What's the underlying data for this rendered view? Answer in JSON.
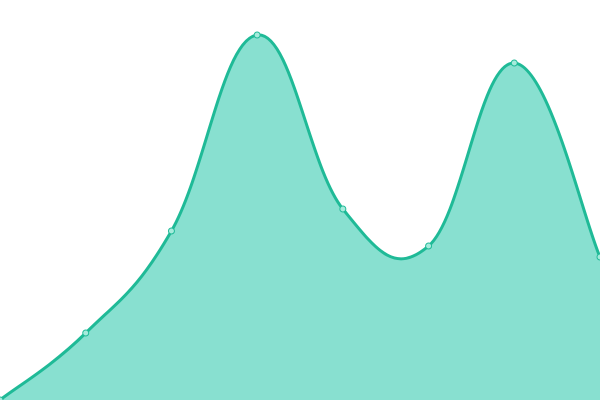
{
  "chart_data": {
    "type": "area",
    "title": "",
    "xlabel": "",
    "ylabel": "",
    "x": [
      0,
      1,
      2,
      3,
      4,
      5,
      6,
      7
    ],
    "series": [
      {
        "values": [
          0,
          67,
          169,
          365,
          191,
          154,
          337,
          143
        ]
      }
    ],
    "xlim": [
      0,
      7
    ],
    "ylim": [
      0,
      400
    ],
    "grid": false,
    "axes_visible": false,
    "legend": "none",
    "smooth": true,
    "colors": {
      "line": "#1fba97",
      "fill": "#88e0d0",
      "marker_fill": "#a6ebdc"
    }
  }
}
